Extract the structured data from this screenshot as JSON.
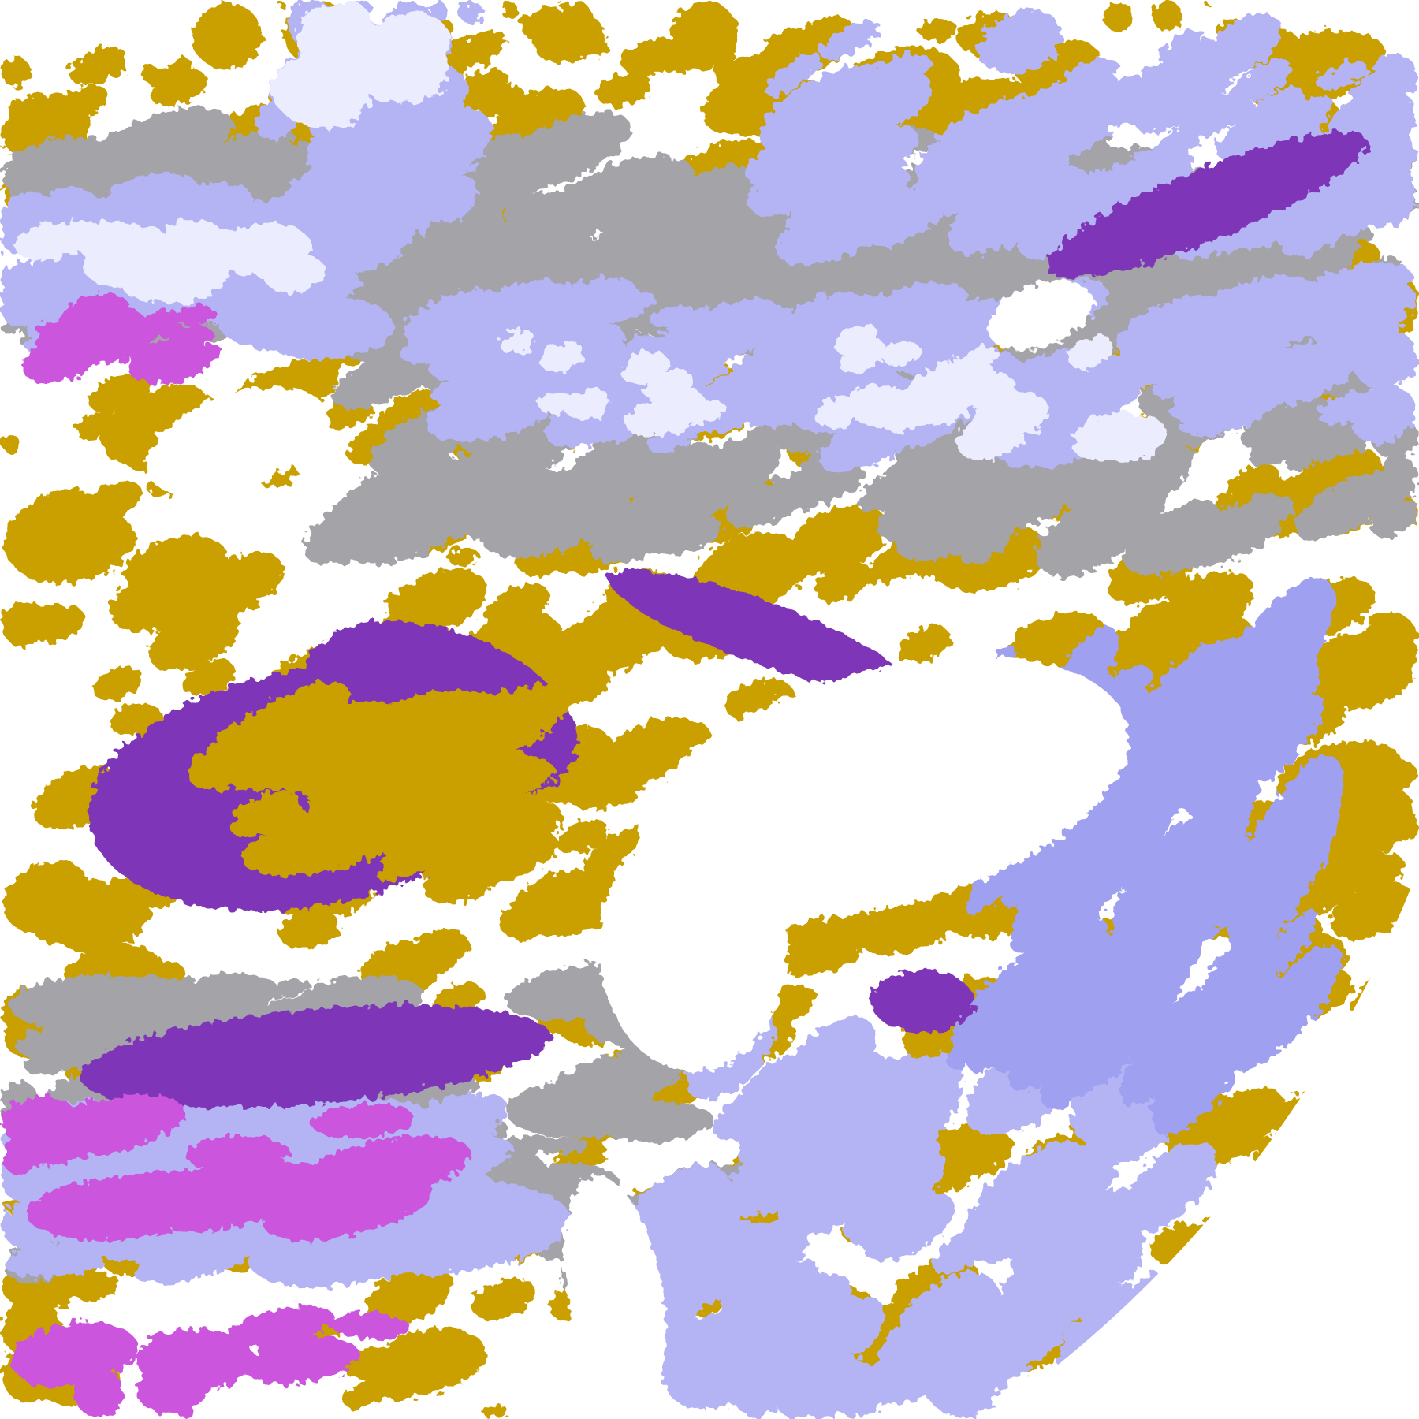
{
  "image": {
    "palette": {
      "background": "#ffffff",
      "gold": "#c9a000",
      "purple": "#7f35b8",
      "magenta": "#cc55dd",
      "lavender": "#b4b4f5",
      "pale": "#ececff",
      "gray": "#a3a3a8",
      "periwinkle": "#a0a0f0"
    }
  }
}
